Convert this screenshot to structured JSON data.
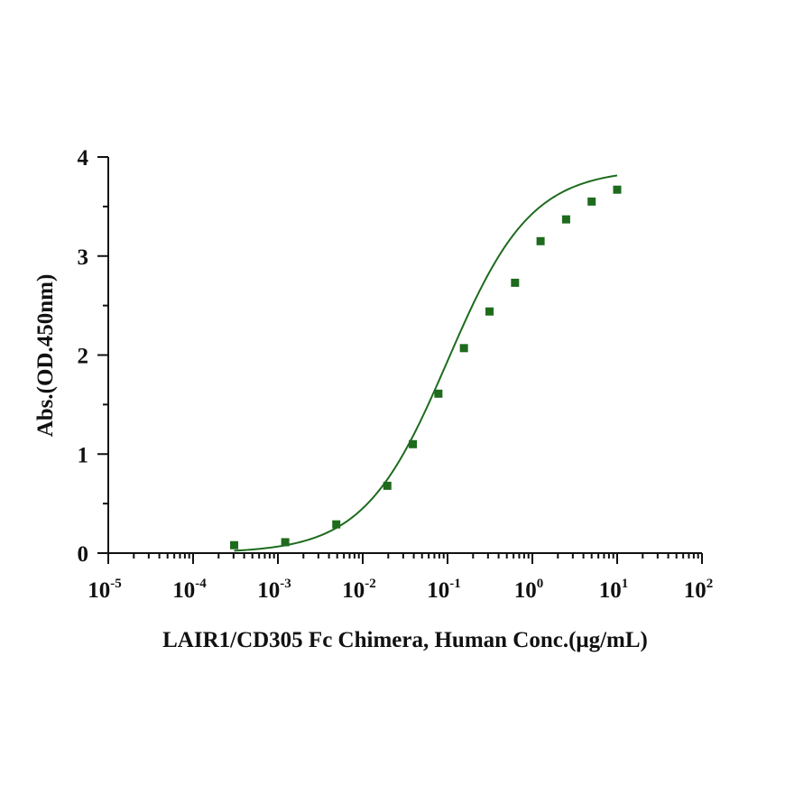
{
  "chart_data": {
    "type": "scatter",
    "xlabel": "LAIR1/CD305 Fc Chimera, Human Conc.(μg/mL)",
    "ylabel": "Abs.(OD.450nm)",
    "x_scale": "log",
    "xlim": [
      1e-05,
      100
    ],
    "ylim": [
      0,
      4
    ],
    "y_ticks": [
      "0",
      "1",
      "2",
      "3",
      "4"
    ],
    "x_ticks": [
      {
        "base": "10",
        "exp": "-5",
        "value": 1e-05
      },
      {
        "base": "10",
        "exp": "-4",
        "value": 0.0001
      },
      {
        "base": "10",
        "exp": "-3",
        "value": 0.001
      },
      {
        "base": "10",
        "exp": "-2",
        "value": 0.01
      },
      {
        "base": "10",
        "exp": "-1",
        "value": 0.1
      },
      {
        "base": "10",
        "exp": "0",
        "value": 1
      },
      {
        "base": "10",
        "exp": "1",
        "value": 10
      },
      {
        "base": "10",
        "exp": "2",
        "value": 100
      }
    ],
    "grid": false,
    "series": [
      {
        "color": "#1e6b1e",
        "marker": "square",
        "x": [
          0.000305,
          0.00122,
          0.00488,
          0.0195,
          0.039,
          0.078,
          0.156,
          0.3125,
          0.625,
          1.25,
          2.5,
          5,
          10
        ],
        "y": [
          0.08,
          0.11,
          0.29,
          0.68,
          1.1,
          1.61,
          2.07,
          2.44,
          2.73,
          3.15,
          3.37,
          3.55,
          3.67
        ]
      }
    ],
    "fit": {
      "type": "4PL",
      "bottom": 0.0,
      "top": 3.88,
      "ec50": 0.1,
      "hill": 0.88,
      "color": "#1e6b1e"
    }
  }
}
